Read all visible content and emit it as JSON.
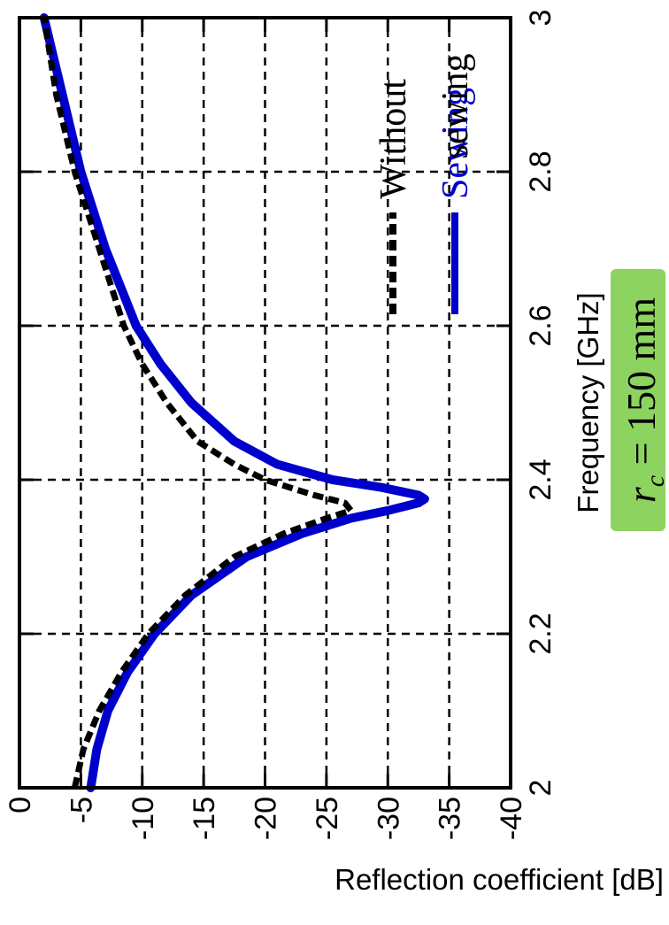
{
  "chart_data": {
    "type": "line",
    "orientation": "rotated-90-ccw",
    "xlabel": "Frequency [GHz]",
    "ylabel": "Reflection coefficient [dB]",
    "xlim": [
      2,
      3
    ],
    "ylim": [
      -40,
      0
    ],
    "xticks": [
      "2",
      "2.2",
      "2.4",
      "2.6",
      "2.8",
      "3"
    ],
    "xtick_values": [
      2,
      2.2,
      2.4,
      2.6,
      2.8,
      3
    ],
    "yticks": [
      "0",
      "-5",
      "-10",
      "-15",
      "-20",
      "-25",
      "-30",
      "-35",
      "-40"
    ],
    "ytick_values": [
      0,
      -5,
      -10,
      -15,
      -20,
      -25,
      -30,
      -35,
      -40
    ],
    "grid": true,
    "legend_position": "top-right",
    "series": [
      {
        "name": "Sewing",
        "color": "#0000cc",
        "style": "solid",
        "x": [
          2.0,
          2.05,
          2.1,
          2.15,
          2.2,
          2.25,
          2.3,
          2.33,
          2.35,
          2.36,
          2.37,
          2.375,
          2.38,
          2.39,
          2.4,
          2.42,
          2.45,
          2.5,
          2.55,
          2.6,
          2.7,
          2.8,
          2.9,
          3.0
        ],
        "y": [
          -5.8,
          -6.3,
          -7.2,
          -8.8,
          -11.0,
          -14.0,
          -18.5,
          -23.0,
          -27.0,
          -30.0,
          -32.5,
          -33.0,
          -32.5,
          -29.5,
          -25.5,
          -21.0,
          -17.5,
          -14.0,
          -11.5,
          -9.5,
          -7.0,
          -5.0,
          -3.5,
          -2.0
        ]
      },
      {
        "name": "Without sewing",
        "color": "#000000",
        "style": "dashed",
        "x": [
          2.0,
          2.05,
          2.1,
          2.15,
          2.2,
          2.25,
          2.3,
          2.33,
          2.35,
          2.36,
          2.37,
          2.38,
          2.39,
          2.4,
          2.42,
          2.45,
          2.5,
          2.55,
          2.6,
          2.7,
          2.8,
          2.9,
          3.0
        ],
        "y": [
          -4.5,
          -5.2,
          -6.5,
          -8.3,
          -10.5,
          -13.5,
          -17.5,
          -21.5,
          -25.0,
          -27.0,
          -26.5,
          -24.0,
          -22.0,
          -20.0,
          -17.5,
          -14.5,
          -12.0,
          -10.0,
          -8.5,
          -6.5,
          -4.5,
          -3.0,
          -2.0
        ]
      }
    ],
    "annotation": {
      "symbol": "r",
      "subscript": "c",
      "text": " = 150 mm",
      "background": "#8dd35f"
    }
  }
}
